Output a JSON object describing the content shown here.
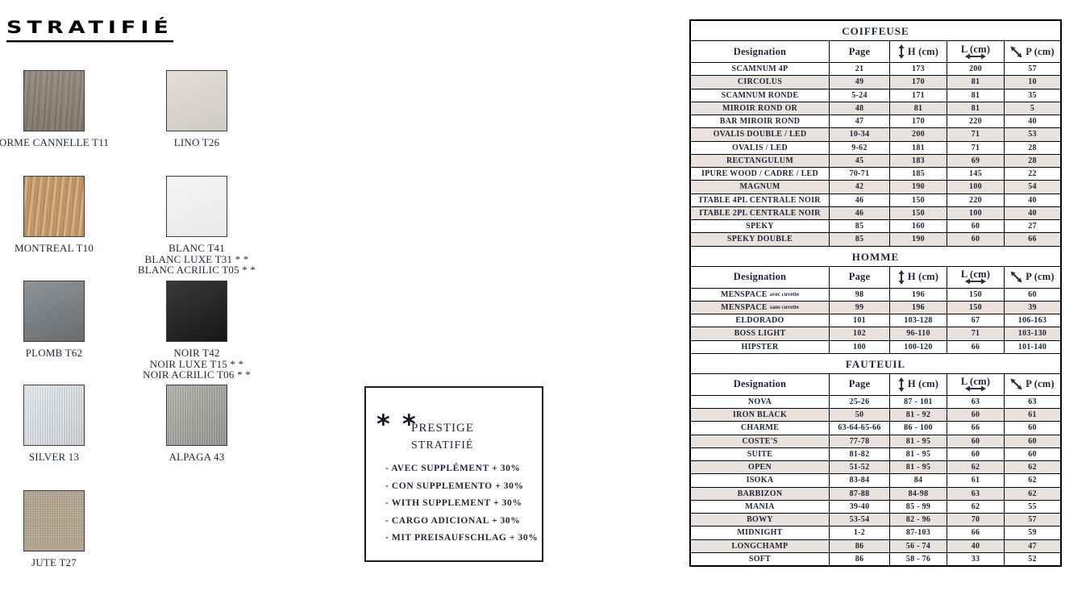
{
  "page": {
    "title": "STRATIFIÉ"
  },
  "colors": {
    "row_shade": "#e9e1dc",
    "table_text": "#1f2539"
  },
  "swatches": [
    {
      "label_lines": [
        "ORME CANNELLE T11"
      ],
      "color": "#8e8277"
    },
    {
      "label_lines": [
        "LINO T26"
      ],
      "color": "#d8d3c9"
    },
    {
      "label_lines": [
        "MONTREAL T10"
      ],
      "color": "#c59f70"
    },
    {
      "label_lines": [
        "BLANC T41",
        "BLANC LUXE T31 * *",
        "BLANC ACRILIC T05 * *"
      ],
      "color": "#f2f2f1"
    },
    {
      "label_lines": [
        "PLOMB T62"
      ],
      "color": "#6c7072"
    },
    {
      "label_lines": [
        "NOIR T42",
        "NOIR LUXE T15 * *",
        "NOIR ACRILIC T06 * *"
      ],
      "color": "#232323"
    },
    {
      "label_lines": [
        "SILVER 13"
      ],
      "color": "#c6cacf"
    },
    {
      "label_lines": [
        "ALPAGA 43"
      ],
      "color": "#999a96"
    },
    {
      "label_lines": [
        "JUTE T27"
      ],
      "color": "#b1a38d"
    }
  ],
  "prestige_box": {
    "stars": "* *",
    "title_line1": "PRESTIGE",
    "title_line2": "STRATIFIÉ",
    "items": [
      "- AVEC SUPPLÉMENT + 30%",
      "- CON SUPPLEMENTO + 30%",
      "- WITH SUPPLEMENT + 30%",
      "- CARGO ADICIONAL + 30%",
      "- MIT PREISAUFSCHLAG + 30%"
    ]
  },
  "columns": {
    "designation": "Designation",
    "page": "Page",
    "h": "H (cm)",
    "l": "L (cm)",
    "p": "P (cm)"
  },
  "tables": [
    {
      "title": "COIFFEUSE",
      "rows": [
        [
          "SCAMNUM 4P",
          "21",
          "173",
          "200",
          "57"
        ],
        [
          "CIRCOLUS",
          "49",
          "170",
          "81",
          "10"
        ],
        [
          "SCAMNUM RONDE",
          "5-24",
          "171",
          "81",
          "35"
        ],
        [
          "MIROIR ROND OR",
          "48",
          "81",
          "81",
          "5"
        ],
        [
          "BAR MIROIR ROND",
          "47",
          "170",
          "220",
          "40"
        ],
        [
          "OVALIS DOUBLE / LED",
          "10-34",
          "200",
          "71",
          "53"
        ],
        [
          "OVALIS / LED",
          "9-62",
          "181",
          "71",
          "28"
        ],
        [
          "RECTANGULUM",
          "45",
          "183",
          "69",
          "28"
        ],
        [
          "IPURE WOOD / CADRE / LED",
          "70-71",
          "185",
          "145",
          "22"
        ],
        [
          "MAGNUM",
          "42",
          "190",
          "100",
          "54"
        ],
        [
          "ITABLE 4PL CENTRALE NOIR",
          "46",
          "150",
          "220",
          "40"
        ],
        [
          "ITABLE 2PL CENTRALE NOIR",
          "46",
          "150",
          "100",
          "40"
        ],
        [
          "SPEKY",
          "85",
          "160",
          "60",
          "27"
        ],
        [
          "SPEKY DOUBLE",
          "85",
          "190",
          "60",
          "66"
        ]
      ]
    },
    {
      "title": "HOMME",
      "rows": [
        [
          {
            "main": "MENSPACE",
            "small": "avec cuvette"
          },
          "98",
          "196",
          "150",
          "60"
        ],
        [
          {
            "main": "MENSPACE",
            "small": "sans cuvette"
          },
          "99",
          "196",
          "150",
          "39"
        ],
        [
          "ELDORADO",
          "101",
          "103-128",
          "67",
          "106-163"
        ],
        [
          "BOSS LIGHT",
          "102",
          "96-110",
          "71",
          "103-130"
        ],
        [
          "HIPSTER",
          "100",
          "100-120",
          "66",
          "101-140"
        ]
      ]
    },
    {
      "title": "FAUTEUIL",
      "rows": [
        [
          "NOVA",
          "25-26",
          "87 - 101",
          "63",
          "63"
        ],
        [
          "IRON BLACK",
          "50",
          "81 - 92",
          "60",
          "61"
        ],
        [
          "CHARME",
          "63-64-65-66",
          "86 - 100",
          "66",
          "60"
        ],
        [
          "COSTE'S",
          "77-78",
          "81 - 95",
          "60",
          "60"
        ],
        [
          "SUITE",
          "81-82",
          "81 - 95",
          "60",
          "60"
        ],
        [
          "OPEN",
          "51-52",
          "81 - 95",
          "62",
          "62"
        ],
        [
          "ISOKA",
          "83-84",
          "84",
          "61",
          "62"
        ],
        [
          "BARBIZON",
          "87-88",
          "84-98",
          "63",
          "62"
        ],
        [
          "MANIA",
          "39-40",
          "85 - 99",
          "62",
          "55"
        ],
        [
          "BOWY",
          "53-54",
          "82 - 96",
          "70",
          "57"
        ],
        [
          "MIDNIGHT",
          "1-2",
          "87-103",
          "66",
          "59"
        ],
        [
          "LONGCHAMP",
          "86",
          "56 - 74",
          "40",
          "47"
        ],
        [
          "SOFT",
          "86",
          "58 - 76",
          "33",
          "52"
        ]
      ]
    }
  ]
}
